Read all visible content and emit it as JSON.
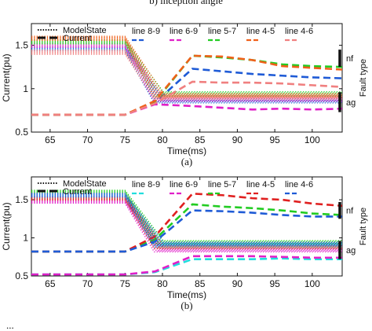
{
  "figure_title": "b) inception angle",
  "bottom_caption": "...",
  "chart_data": [
    {
      "type": "line",
      "subcaption": "(a)",
      "xlabel": "Time(ms)",
      "ylabel": "Current(pu)",
      "xlim": [
        62.5,
        104
      ],
      "ylim": [
        0.5,
        1.75
      ],
      "xticks": [
        65,
        70,
        75,
        80,
        85,
        90,
        95,
        100
      ],
      "yticks": [
        0.5,
        1,
        1.5
      ],
      "grid": false,
      "legend_position": "top-left",
      "legend_styles": [
        {
          "name": "ModelState",
          "style": "dotted"
        },
        {
          "name": "Current",
          "style": "dashed"
        }
      ],
      "fault_type_label": "Fault type",
      "fault_markers": [
        {
          "label": "nf",
          "y_range": [
            1.25,
            1.45
          ]
        },
        {
          "label": "ag",
          "y_range": [
            0.73,
            0.96
          ]
        }
      ],
      "x": [
        62.5,
        75,
        79,
        84,
        88,
        92,
        96,
        100,
        104
      ],
      "series": [
        {
          "name": "line 8-9",
          "color": "#1f5bd6",
          "current": [
            0.7,
            0.7,
            0.84,
            1.23,
            1.2,
            1.17,
            1.15,
            1.13,
            1.12
          ],
          "model_start": 1.46,
          "model_end": 0.86
        },
        {
          "name": "line 6-9",
          "color": "#e020c8",
          "current": [
            0.7,
            0.7,
            0.82,
            0.8,
            0.78,
            0.76,
            0.77,
            0.76,
            0.77
          ],
          "model_start": 1.5,
          "model_end": 0.88
        },
        {
          "name": "line 5-7",
          "color": "#22cc22",
          "current": [
            0.7,
            0.7,
            0.85,
            1.38,
            1.36,
            1.33,
            1.28,
            1.26,
            1.25
          ],
          "model_start": 1.54,
          "model_end": 0.94
        },
        {
          "name": "line 4-5",
          "color": "#f0601a",
          "current": [
            0.7,
            0.7,
            0.86,
            1.38,
            1.37,
            1.33,
            1.26,
            1.24,
            1.22
          ],
          "model_start": 1.58,
          "model_end": 0.92
        },
        {
          "name": "line 4-6",
          "color": "#f08080",
          "current": [
            0.7,
            0.7,
            0.83,
            1.08,
            1.07,
            1.07,
            1.06,
            1.04,
            1.02
          ],
          "model_start": 1.42,
          "model_end": 0.9
        }
      ]
    },
    {
      "type": "line",
      "subcaption": "(b)",
      "xlabel": "Time(ms)",
      "ylabel": "Current(pu)",
      "xlim": [
        62.5,
        104
      ],
      "ylim": [
        0.5,
        1.8
      ],
      "xticks": [
        65,
        70,
        75,
        80,
        85,
        90,
        95,
        100
      ],
      "yticks": [
        0.5,
        1,
        1.5
      ],
      "grid": false,
      "legend_position": "top-left",
      "legend_styles": [
        {
          "name": "ModelState",
          "style": "dotted"
        },
        {
          "name": "Current",
          "style": "dashed"
        }
      ],
      "fault_type_label": "Fault type",
      "fault_markers": [
        {
          "label": "nf",
          "y_range": [
            1.25,
            1.47
          ]
        },
        {
          "label": "ag",
          "y_range": [
            0.72,
            0.96
          ]
        }
      ],
      "x": [
        62.5,
        75,
        79,
        84,
        88,
        92,
        96,
        100,
        104
      ],
      "series": [
        {
          "name": "line 8-9",
          "color": "#22dddd",
          "current": [
            0.52,
            0.52,
            0.55,
            0.72,
            0.72,
            0.72,
            0.73,
            0.72,
            0.72
          ],
          "model_start": 1.54,
          "model_end": 0.9
        },
        {
          "name": "line 6-9",
          "color": "#e020c8",
          "current": [
            0.52,
            0.52,
            0.56,
            0.76,
            0.76,
            0.76,
            0.75,
            0.74,
            0.74
          ],
          "model_start": 1.48,
          "model_end": 0.84
        },
        {
          "name": "line 5-7",
          "color": "#22cc22",
          "current": [
            0.82,
            0.82,
            0.98,
            1.44,
            1.41,
            1.39,
            1.36,
            1.32,
            1.3
          ],
          "model_start": 1.6,
          "model_end": 0.94
        },
        {
          "name": "line 4-5",
          "color": "#e02020",
          "current": [
            0.82,
            0.82,
            1.02,
            1.58,
            1.56,
            1.52,
            1.5,
            1.45,
            1.42
          ],
          "model_start": 1.52,
          "model_end": 0.88
        },
        {
          "name": "line 4-6",
          "color": "#1f5bd6",
          "current": [
            0.82,
            0.82,
            0.95,
            1.36,
            1.35,
            1.33,
            1.3,
            1.28,
            1.28
          ],
          "model_start": 1.56,
          "model_end": 0.92
        }
      ]
    }
  ]
}
